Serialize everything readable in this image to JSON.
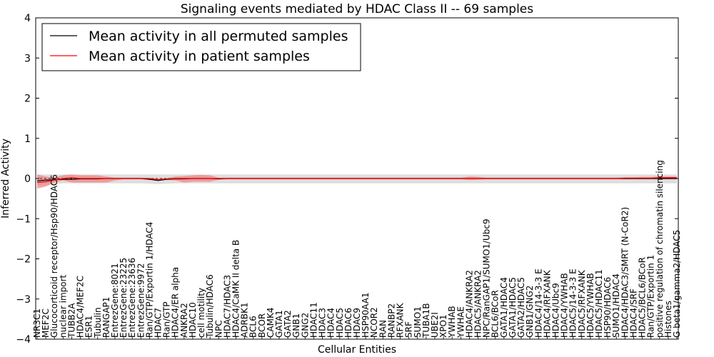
{
  "chart_data": {
    "type": "line",
    "title": "Signaling events mediated by HDAC Class II -- 69 samples",
    "xlabel": "Cellular Entities",
    "ylabel": "Inferred Activity",
    "ylim": [
      -4,
      4
    ],
    "yticks": [
      -4,
      -3,
      -2,
      -1,
      0,
      1,
      2,
      3,
      4
    ],
    "legend_position": "top-left",
    "legend": [
      {
        "label": "Mean activity in all permuted samples",
        "color": "#000000"
      },
      {
        "label": "Mean activity in patient samples",
        "color": "#ff0000"
      }
    ],
    "categories": [
      "NR3C1",
      "MEF2C",
      "Glucocorticoid receptor/Hsp90/HDAC6",
      "nuclear import",
      "TUBB2A",
      "HDAC4/MEF2C",
      "ESR1",
      "Tubulin",
      "RANGAP1",
      "EntrezGene:8021",
      "EntrezGene:23225",
      "EntrezGene:23636",
      "EntrezGene:9972",
      "Ran/GTP/Exportin 1/HDAC4",
      "HDAC7",
      "Ran/GTP",
      "HDAC4/ER alpha",
      "ANKRA2",
      "HDAC10",
      "cell motility",
      "Tubulin/HDAC6",
      "NPC",
      "HDAC7/HDAC3",
      "HDAC4/CaMK II delta B",
      "ADRBK1",
      "BCL6",
      "BCOR",
      "CAMK4",
      "GATA1",
      "GATA2",
      "GNB1",
      "GNG2",
      "HDAC11",
      "HDAC3",
      "HDAC4",
      "HDAC5",
      "HDAC6",
      "HDAC9",
      "HSP90AA1",
      "NCOR2",
      "RAN",
      "RANBP2",
      "RFXANK",
      "SRF",
      "SUMO1",
      "TUBA1B",
      "UBE2I",
      "XPO1",
      "YWHAB",
      "YWHAE",
      "HDAC4/ANKRA2",
      "HDAC5/ANKRA2",
      "NPC/RanGAP1/SUMO1/Ubc9",
      "BCL6/BCoR",
      "GATA1/HDAC4",
      "GATA1/HDAC5",
      "GATA2/HDAC5",
      "GNB1/GNG2",
      "HDAC4/14-3-3 E",
      "HDAC4/RFXANK",
      "HDAC4/Ubc9",
      "HDAC4/YWHAB",
      "HDAC5/14-3-3 E",
      "HDAC5/RFXANK",
      "HDAC5/YWHAB",
      "HDAC5/HDAC11",
      "HSP90/HDAC6",
      "SUMO1/HDAC4",
      "HDAC4/HDAC3/SMRT (N-CoR2)",
      "HDAC4/SRF",
      "HDAC5/BCL6/BCoR",
      "Ran/GTP/Exportin 1",
      "positive regulation of chromatin silencing",
      "Histones",
      "G beta1/gamma2/HDAC5"
    ],
    "series": [
      {
        "name": "Mean activity in all permuted samples",
        "color": "#000000",
        "values": [
          -0.06,
          -0.04,
          -0.03,
          -0.02,
          -0.02,
          -0.01,
          -0.01,
          -0.01,
          0,
          0,
          0,
          0,
          0,
          -0.02,
          -0.05,
          -0.02,
          -0.01,
          -0.01,
          0,
          0,
          0,
          -0.01,
          0,
          0,
          0,
          0,
          0,
          0,
          0,
          0,
          0,
          0,
          0,
          0,
          0,
          0,
          0,
          0,
          0,
          0,
          0,
          0,
          0,
          0,
          0,
          0,
          0,
          0,
          0,
          0,
          0,
          0,
          0,
          0,
          0,
          0,
          0,
          0,
          0,
          0,
          0,
          0,
          0,
          0,
          0,
          0,
          0,
          0,
          0,
          0,
          0,
          0,
          0,
          0,
          0
        ]
      },
      {
        "name": "Mean activity in patient samples",
        "color": "#ff0000",
        "values": [
          -0.1,
          -0.08,
          -0.04,
          0,
          0.02,
          0,
          0,
          0,
          0,
          0,
          0,
          0,
          0,
          0,
          -0.03,
          -0.01,
          0,
          0,
          0,
          0,
          0,
          0,
          0,
          0,
          0,
          0,
          0,
          0,
          0,
          0,
          0,
          0,
          0,
          0,
          0,
          0,
          0,
          0,
          0,
          0,
          0,
          0,
          0,
          0,
          0,
          0,
          0,
          0,
          0,
          0,
          0,
          0,
          0,
          0,
          0,
          0,
          0,
          0,
          0,
          0,
          0,
          0,
          0,
          0,
          0,
          0,
          0,
          0,
          0.01,
          0.01,
          0.01,
          0.01,
          0.02,
          0.02,
          0.02
        ]
      }
    ],
    "patient_band": {
      "lower": [
        -0.25,
        -0.2,
        -0.1,
        -0.05,
        -0.1,
        -0.1,
        -0.1,
        -0.1,
        -0.1,
        -0.05,
        -0.02,
        -0.02,
        -0.02,
        -0.03,
        -0.06,
        -0.03,
        -0.05,
        -0.1,
        -0.08,
        -0.08,
        -0.08,
        -0.03,
        -0.02,
        -0.02,
        -0.02,
        -0.02,
        -0.02,
        -0.02,
        -0.02,
        -0.02,
        -0.02,
        -0.02,
        -0.02,
        -0.02,
        -0.02,
        -0.02,
        -0.02,
        -0.02,
        -0.02,
        -0.02,
        -0.02,
        -0.02,
        -0.02,
        -0.02,
        -0.02,
        -0.02,
        -0.02,
        -0.02,
        -0.02,
        -0.02,
        -0.04,
        -0.03,
        -0.02,
        -0.02,
        -0.02,
        -0.02,
        -0.02,
        -0.02,
        -0.02,
        -0.02,
        -0.02,
        -0.02,
        -0.02,
        -0.02,
        -0.02,
        -0.02,
        -0.02,
        -0.02,
        -0.02,
        -0.02,
        -0.02,
        -0.02,
        -0.02,
        -0.02,
        -0.02
      ],
      "upper": [
        0.1,
        0.05,
        0.02,
        0.08,
        0.1,
        0.08,
        0.08,
        0.08,
        0.05,
        0.02,
        0.02,
        0.02,
        0.02,
        0.01,
        0,
        0.01,
        0.05,
        0.06,
        0.08,
        0.09,
        0.08,
        0.02,
        0.02,
        0.02,
        0.02,
        0.02,
        0.02,
        0.02,
        0.02,
        0.02,
        0.02,
        0.02,
        0.02,
        0.02,
        0.02,
        0.02,
        0.02,
        0.02,
        0.02,
        0.02,
        0.02,
        0.02,
        0.02,
        0.02,
        0.02,
        0.02,
        0.02,
        0.02,
        0.02,
        0.02,
        0.05,
        0.04,
        0.02,
        0.02,
        0.02,
        0.02,
        0.02,
        0.02,
        0.02,
        0.02,
        0.02,
        0.02,
        0.02,
        0.02,
        0.02,
        0.02,
        0.02,
        0.02,
        0.03,
        0.03,
        0.04,
        0.04,
        0.05,
        0.05,
        0.05
      ]
    },
    "permuted_band": {
      "lower": [
        -0.18,
        -0.16,
        -0.14,
        -0.12,
        -0.12,
        -0.12,
        -0.12,
        -0.12,
        -0.12,
        -0.12,
        -0.12,
        -0.12,
        -0.12,
        -0.13,
        -0.14,
        -0.13,
        -0.12,
        -0.12,
        -0.12,
        -0.12,
        -0.12,
        -0.12,
        -0.12,
        -0.12,
        -0.12,
        -0.12,
        -0.12,
        -0.12,
        -0.12,
        -0.12,
        -0.12,
        -0.12,
        -0.12,
        -0.12,
        -0.12,
        -0.12,
        -0.12,
        -0.12,
        -0.12,
        -0.12,
        -0.12,
        -0.12,
        -0.12,
        -0.12,
        -0.12,
        -0.12,
        -0.12,
        -0.12,
        -0.12,
        -0.12,
        -0.12,
        -0.12,
        -0.12,
        -0.12,
        -0.12,
        -0.12,
        -0.12,
        -0.12,
        -0.12,
        -0.12,
        -0.12,
        -0.12,
        -0.12,
        -0.12,
        -0.12,
        -0.12,
        -0.12,
        -0.12,
        -0.12,
        -0.12,
        -0.12,
        -0.12,
        -0.12,
        -0.12,
        -0.12
      ],
      "upper": [
        0.1,
        0.1,
        0.1,
        0.1,
        0.1,
        0.1,
        0.1,
        0.1,
        0.1,
        0.1,
        0.1,
        0.1,
        0.1,
        0.1,
        0.1,
        0.1,
        0.1,
        0.1,
        0.1,
        0.1,
        0.1,
        0.1,
        0.1,
        0.1,
        0.1,
        0.1,
        0.1,
        0.1,
        0.1,
        0.1,
        0.1,
        0.1,
        0.1,
        0.1,
        0.1,
        0.1,
        0.1,
        0.1,
        0.1,
        0.1,
        0.1,
        0.1,
        0.1,
        0.1,
        0.1,
        0.1,
        0.1,
        0.1,
        0.1,
        0.1,
        0.1,
        0.1,
        0.1,
        0.1,
        0.1,
        0.1,
        0.1,
        0.1,
        0.1,
        0.1,
        0.1,
        0.1,
        0.1,
        0.1,
        0.1,
        0.1,
        0.1,
        0.1,
        0.1,
        0.1,
        0.1,
        0.1,
        0.1,
        0.1,
        0.1
      ]
    }
  }
}
